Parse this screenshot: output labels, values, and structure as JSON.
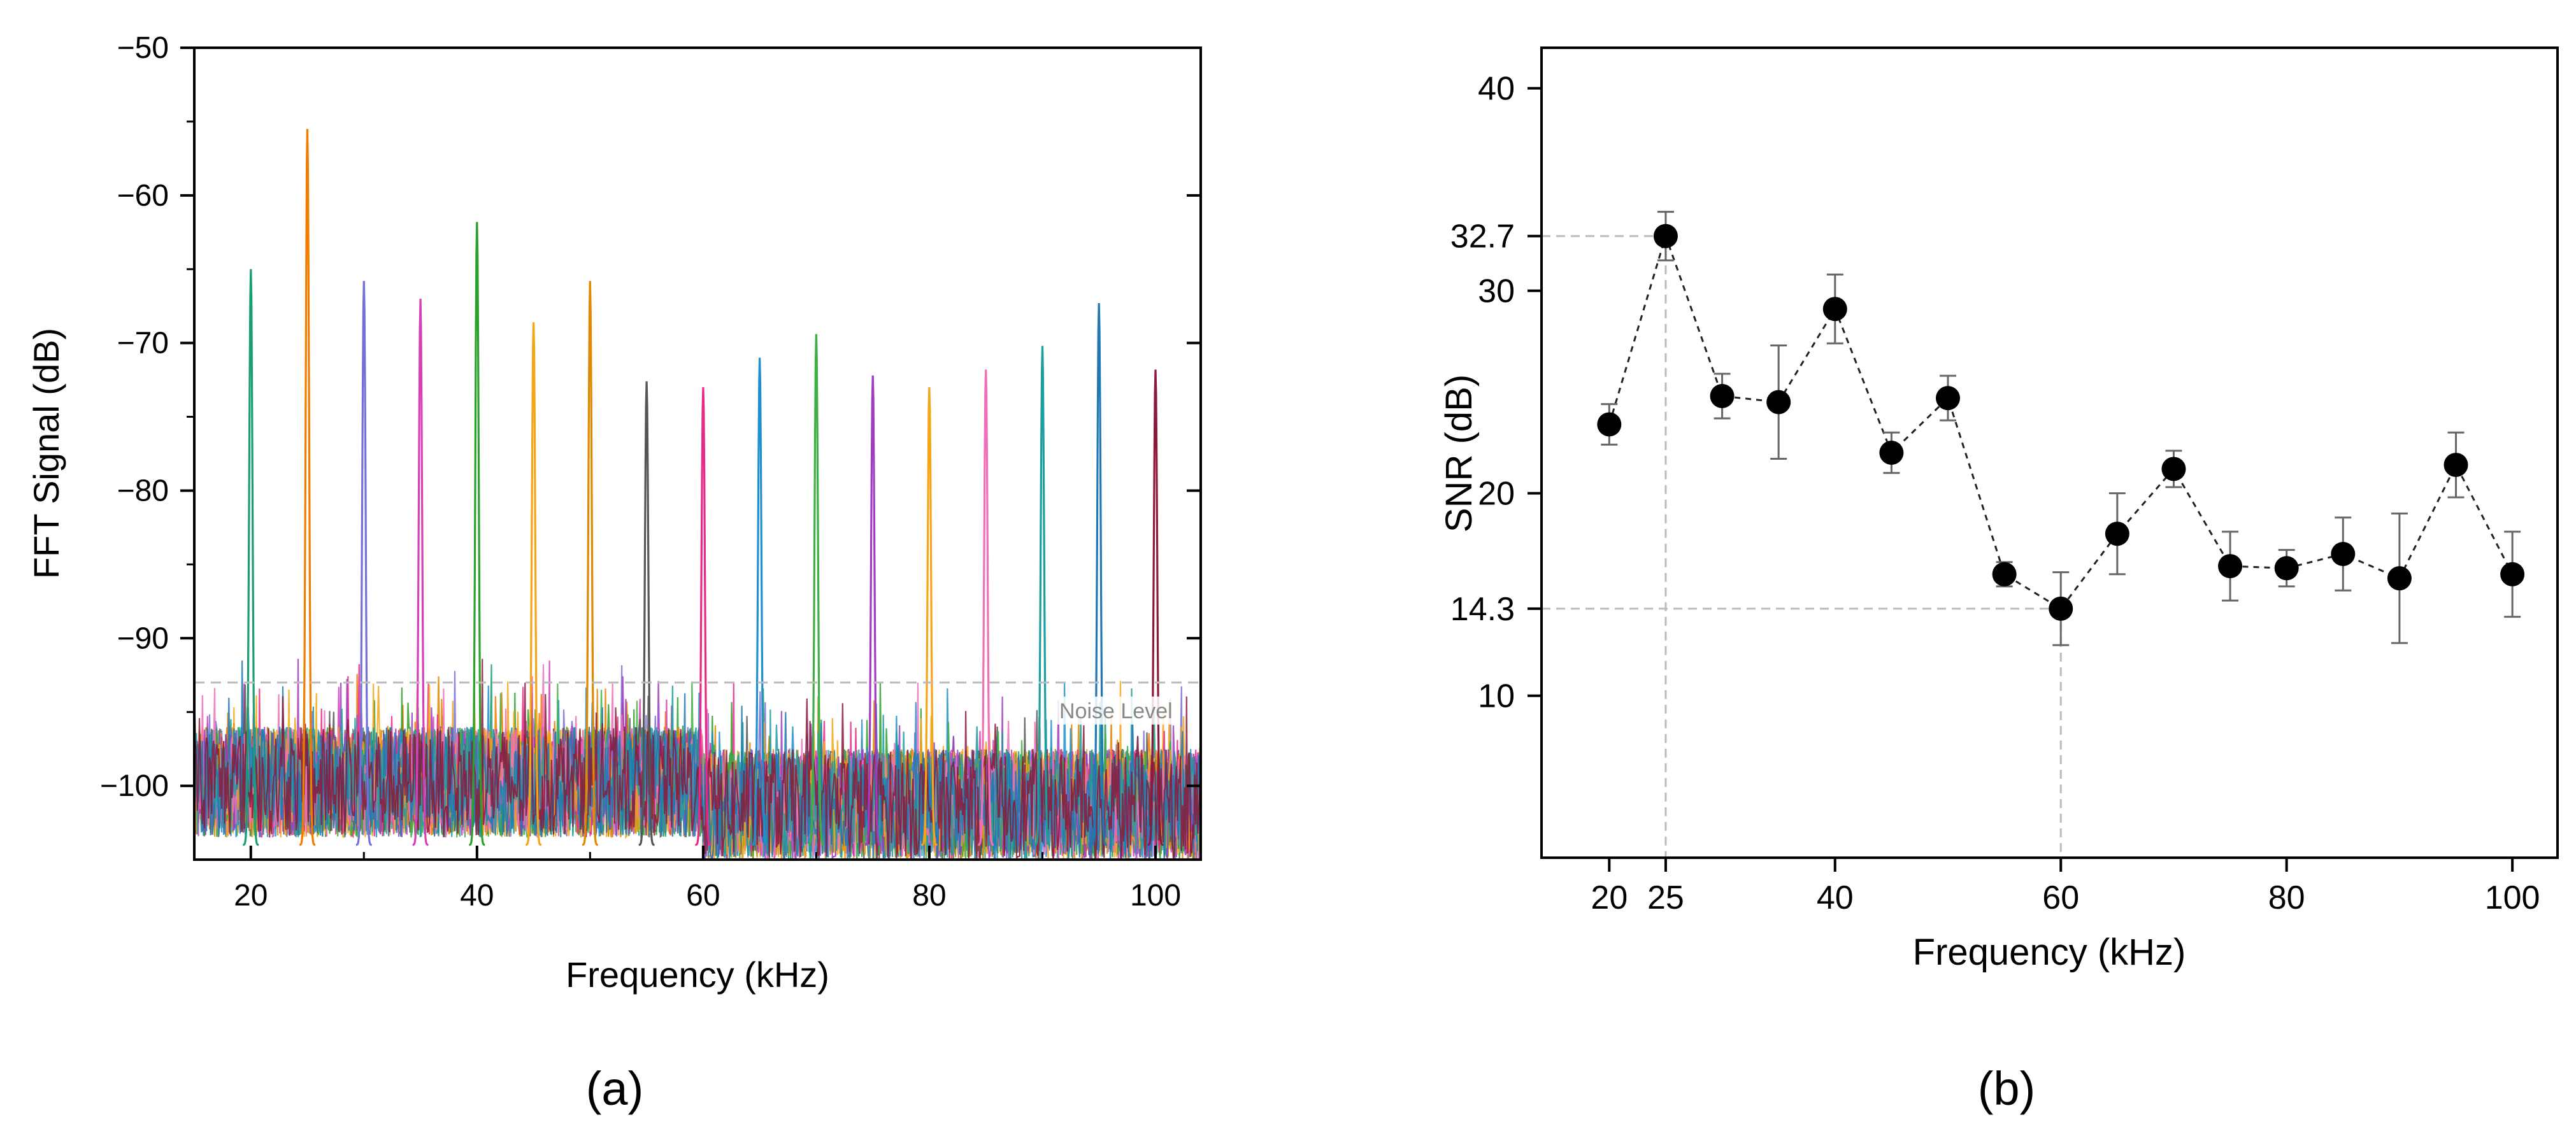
{
  "chart_data": [
    {
      "panel": "(a)",
      "type": "line",
      "xlabel": "Frequency (kHz)",
      "ylabel": "FFT Signal (dB)",
      "xlim": [
        15,
        104
      ],
      "ylim": [
        -105,
        -50
      ],
      "xticks": [
        20,
        40,
        60,
        80,
        100
      ],
      "yticks": [
        -50,
        -60,
        -70,
        -80,
        -90,
        -100
      ],
      "grid": false,
      "noise_level": {
        "label": "Noise Level",
        "y": -93
      },
      "series": [
        {
          "f": 20,
          "peak": -65.0,
          "color": "#1a9e75"
        },
        {
          "f": 25,
          "peak": -55.5,
          "color": "#f07c00"
        },
        {
          "f": 30,
          "peak": -65.8,
          "color": "#7570d8"
        },
        {
          "f": 35,
          "peak": -67.0,
          "color": "#d63fb5"
        },
        {
          "f": 40,
          "peak": -61.8,
          "color": "#2ca02c"
        },
        {
          "f": 45,
          "peak": -68.6,
          "color": "#f5a516"
        },
        {
          "f": 50,
          "peak": -65.8,
          "color": "#e08800"
        },
        {
          "f": 55,
          "peak": -72.6,
          "color": "#555555"
        },
        {
          "f": 60,
          "peak": -73.0,
          "color": "#e7298a"
        },
        {
          "f": 65,
          "peak": -71.0,
          "color": "#1f8fd0"
        },
        {
          "f": 70,
          "peak": -69.4,
          "color": "#3cb043"
        },
        {
          "f": 75,
          "peak": -72.2,
          "color": "#a03cc0"
        },
        {
          "f": 80,
          "peak": -73.0,
          "color": "#f5a516"
        },
        {
          "f": 85,
          "peak": -71.8,
          "color": "#f06fb8"
        },
        {
          "f": 90,
          "peak": -70.2,
          "color": "#1a9e9e"
        },
        {
          "f": 95,
          "peak": -67.3,
          "color": "#1f77b4"
        },
        {
          "f": 100,
          "peak": -71.8,
          "color": "#8b1a3a"
        }
      ]
    },
    {
      "panel": "(b)",
      "type": "scatter",
      "xlabel": "Frequency (kHz)",
      "ylabel": "SNR (dB)",
      "xlim": [
        14,
        104
      ],
      "ylim": [
        2,
        42
      ],
      "xticks": [
        20,
        25,
        40,
        60,
        80,
        100
      ],
      "yticks": [
        10,
        14.3,
        20,
        30,
        32.7,
        40
      ],
      "grid": false,
      "x": [
        20,
        25,
        30,
        35,
        40,
        45,
        50,
        55,
        60,
        65,
        70,
        75,
        80,
        85,
        90,
        95,
        100
      ],
      "y": [
        23.4,
        32.7,
        24.8,
        24.5,
        29.1,
        22.0,
        24.7,
        16.0,
        14.3,
        18.0,
        21.2,
        16.4,
        16.3,
        17.0,
        15.8,
        21.4,
        16.0
      ],
      "err": [
        1.0,
        1.2,
        1.1,
        2.8,
        1.7,
        1.0,
        1.1,
        0.6,
        1.8,
        2.0,
        0.9,
        1.7,
        0.9,
        1.8,
        3.2,
        1.6,
        2.1
      ],
      "highlight": [
        {
          "x": 25,
          "y": 32.7
        },
        {
          "x": 60,
          "y": 14.3
        }
      ]
    }
  ]
}
